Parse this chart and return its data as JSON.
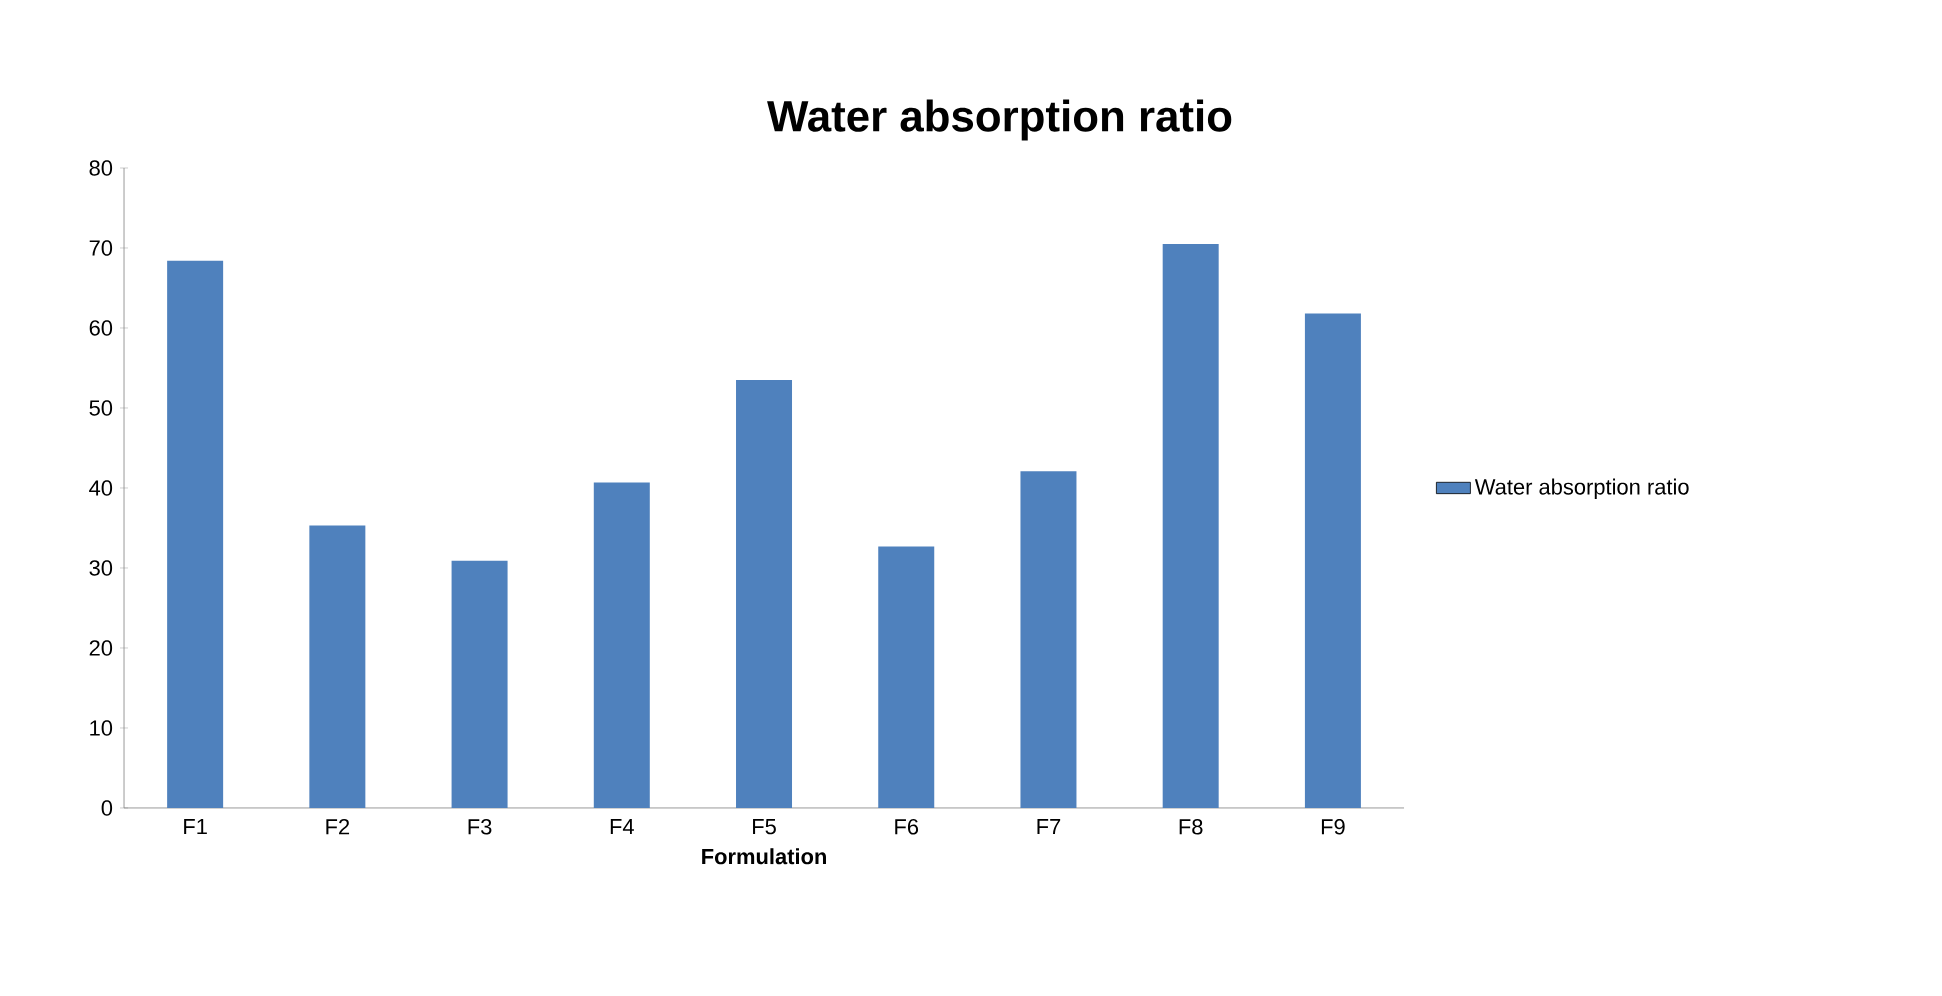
{
  "chart_data": {
    "type": "bar",
    "title": "Water absorption ratio",
    "xlabel": "Formulation",
    "categories": [
      "F1",
      "F2",
      "F3",
      "F4",
      "F5",
      "F6",
      "F7",
      "F8",
      "F9"
    ],
    "series": [
      {
        "name": "Water absorption ratio",
        "color": "#4f81bd",
        "values": [
          68.4,
          35.3,
          30.9,
          40.7,
          53.5,
          32.7,
          42.1,
          70.5,
          61.8
        ]
      }
    ],
    "ylim": [
      0,
      80
    ],
    "yticks": [
      0,
      10,
      20,
      30,
      40,
      50,
      60,
      70,
      80
    ],
    "grid": false,
    "legend": "right"
  }
}
